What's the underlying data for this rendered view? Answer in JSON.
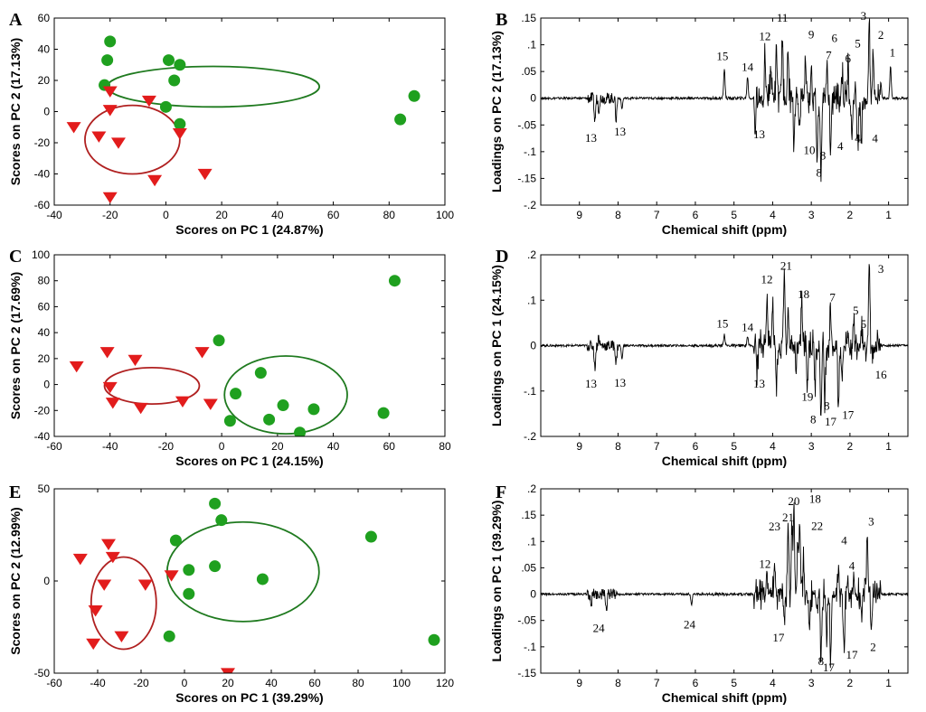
{
  "figure": {
    "marker_colors": {
      "group_circle": "#1fa01f",
      "group_triangle": "#e21c1c",
      "ellipse_green": "#1f7a1f",
      "ellipse_red": "#b02020"
    }
  },
  "chart_data": [
    {
      "panel": "A",
      "type": "scatter",
      "xlabel": "Scores on PC 1 (24.87%)",
      "ylabel": "Scores on PC 2 (17.13%)",
      "xlim": [
        -40,
        100
      ],
      "ylim": [
        -60,
        60
      ],
      "xticks": [
        -40,
        -20,
        0,
        20,
        40,
        60,
        80,
        100
      ],
      "yticks": [
        -60,
        -40,
        -20,
        0,
        20,
        40,
        60
      ],
      "series": [
        {
          "name": "circles",
          "marker": "circle",
          "points": [
            [
              -20,
              45
            ],
            [
              -21,
              33
            ],
            [
              -22,
              17
            ],
            [
              1,
              33
            ],
            [
              5,
              30
            ],
            [
              3,
              20
            ],
            [
              0,
              3
            ],
            [
              5,
              -8
            ],
            [
              84,
              -5
            ],
            [
              89,
              10
            ]
          ]
        },
        {
          "name": "triangles",
          "marker": "triangle",
          "points": [
            [
              -33,
              -10
            ],
            [
              -24,
              -16
            ],
            [
              -20,
              13
            ],
            [
              -20,
              1
            ],
            [
              -17,
              -20
            ],
            [
              -6,
              7
            ],
            [
              5,
              -14
            ],
            [
              -4,
              -44
            ],
            [
              14,
              -40
            ],
            [
              -20,
              -55
            ]
          ]
        }
      ],
      "ellipses": [
        {
          "color": "green",
          "center": [
            17,
            16
          ],
          "radii": [
            38,
            13
          ]
        },
        {
          "color": "red",
          "center": [
            -12,
            -18
          ],
          "radii": [
            17,
            22
          ]
        }
      ]
    },
    {
      "panel": "B",
      "type": "line",
      "xlabel": "Chemical shift (ppm)",
      "ylabel": "Loadings on PC 2 (17.13%)",
      "xlim": [
        10,
        0.5
      ],
      "ylim": [
        -0.2,
        0.15
      ],
      "xticks": [
        9,
        8,
        7,
        6,
        5,
        4,
        3,
        2,
        1
      ],
      "yticks": [
        -0.2,
        -0.15,
        -0.1,
        -0.05,
        0,
        0.05,
        0.1,
        0.15
      ],
      "peaks": [
        [
          8.6,
          -0.045
        ],
        [
          8.5,
          -0.02
        ],
        [
          8.05,
          -0.04
        ],
        [
          7.9,
          -0.02
        ],
        [
          5.25,
          0.055
        ],
        [
          4.65,
          0.04
        ],
        [
          4.45,
          -0.06
        ],
        [
          4.2,
          0.09
        ],
        [
          4.05,
          0.06
        ],
        [
          3.9,
          0.09
        ],
        [
          3.75,
          0.12
        ],
        [
          3.6,
          0.08
        ],
        [
          3.45,
          -0.09
        ],
        [
          3.3,
          -0.06
        ],
        [
          3.15,
          0.07
        ],
        [
          3.0,
          0.065
        ],
        [
          2.85,
          -0.12
        ],
        [
          2.75,
          -0.15
        ],
        [
          2.6,
          0.05
        ],
        [
          2.5,
          -0.1
        ],
        [
          2.2,
          0.05
        ],
        [
          2.05,
          0.06
        ],
        [
          1.95,
          -0.07
        ],
        [
          1.8,
          -0.09
        ],
        [
          1.7,
          -0.08
        ],
        [
          1.5,
          0.14
        ],
        [
          1.4,
          0.1
        ],
        [
          1.2,
          0.03
        ],
        [
          0.95,
          0.06
        ]
      ],
      "annotations": [
        {
          "text": "13",
          "x": 8.7,
          "y": -0.075
        },
        {
          "text": "13",
          "x": 7.95,
          "y": -0.063
        },
        {
          "text": "15",
          "x": 5.3,
          "y": 0.078
        },
        {
          "text": "14",
          "x": 4.65,
          "y": 0.058
        },
        {
          "text": "12",
          "x": 4.2,
          "y": 0.115
        },
        {
          "text": "11",
          "x": 3.75,
          "y": 0.15
        },
        {
          "text": "13",
          "x": 4.35,
          "y": -0.068
        },
        {
          "text": "9",
          "x": 3.0,
          "y": 0.119
        },
        {
          "text": "10",
          "x": 3.05,
          "y": -0.098
        },
        {
          "text": "8",
          "x": 2.7,
          "y": -0.108
        },
        {
          "text": "8",
          "x": 2.8,
          "y": -0.14
        },
        {
          "text": "7",
          "x": 2.55,
          "y": 0.08
        },
        {
          "text": "6",
          "x": 2.4,
          "y": 0.112
        },
        {
          "text": "6",
          "x": 2.05,
          "y": 0.074
        },
        {
          "text": "5",
          "x": 1.8,
          "y": 0.102
        },
        {
          "text": "4",
          "x": 2.25,
          "y": -0.09
        },
        {
          "text": "4",
          "x": 1.8,
          "y": -0.076
        },
        {
          "text": "4",
          "x": 1.35,
          "y": -0.076
        },
        {
          "text": "3",
          "x": 1.65,
          "y": 0.153
        },
        {
          "text": "2",
          "x": 1.2,
          "y": 0.118
        },
        {
          "text": "1",
          "x": 0.9,
          "y": 0.085
        }
      ]
    },
    {
      "panel": "C",
      "type": "scatter",
      "xlabel": "Scores on PC 1 (24.15%)",
      "ylabel": "Scores on PC 2 (17.69%)",
      "xlim": [
        -60,
        80
      ],
      "ylim": [
        -40,
        100
      ],
      "xticks": [
        -60,
        -40,
        -20,
        0,
        20,
        40,
        60,
        80
      ],
      "yticks": [
        -40,
        -20,
        0,
        20,
        40,
        60,
        80,
        100
      ],
      "series": [
        {
          "name": "circles",
          "marker": "circle",
          "points": [
            [
              62,
              80
            ],
            [
              -1,
              34
            ],
            [
              14,
              9
            ],
            [
              5,
              -7
            ],
            [
              3,
              -28
            ],
            [
              17,
              -27
            ],
            [
              22,
              -16
            ],
            [
              33,
              -19
            ],
            [
              28,
              -37
            ],
            [
              58,
              -22
            ]
          ]
        },
        {
          "name": "triangles",
          "marker": "triangle",
          "points": [
            [
              -52,
              14
            ],
            [
              -41,
              25
            ],
            [
              -31,
              19
            ],
            [
              -40,
              -2
            ],
            [
              -39,
              -14
            ],
            [
              -29,
              -18
            ],
            [
              -14,
              -13
            ],
            [
              -7,
              25
            ],
            [
              -4,
              -15
            ]
          ]
        }
      ],
      "ellipses": [
        {
          "color": "green",
          "center": [
            23,
            -8
          ],
          "radii": [
            22,
            30
          ]
        },
        {
          "color": "red",
          "center": [
            -25,
            -1
          ],
          "radii": [
            17,
            14
          ]
        }
      ]
    },
    {
      "panel": "D",
      "type": "line",
      "xlabel": "Chemical shift (ppm)",
      "ylabel": "Loadings on PC 1 (24.15%)",
      "xlim": [
        10,
        0.5
      ],
      "ylim": [
        -0.2,
        0.2
      ],
      "xticks": [
        9,
        8,
        7,
        6,
        5,
        4,
        3,
        2,
        1
      ],
      "yticks": [
        -0.2,
        -0.1,
        0,
        0.1,
        0.2
      ],
      "peaks": [
        [
          8.6,
          -0.05
        ],
        [
          8.5,
          0.02
        ],
        [
          8.05,
          -0.04
        ],
        [
          7.9,
          -0.03
        ],
        [
          5.25,
          0.025
        ],
        [
          4.65,
          0.02
        ],
        [
          4.4,
          -0.06
        ],
        [
          4.15,
          0.11
        ],
        [
          4.0,
          0.09
        ],
        [
          3.9,
          -0.08
        ],
        [
          3.7,
          0.17
        ],
        [
          3.6,
          0.08
        ],
        [
          3.4,
          -0.06
        ],
        [
          3.25,
          0.1
        ],
        [
          3.1,
          -0.08
        ],
        [
          2.9,
          -0.09
        ],
        [
          2.75,
          -0.16
        ],
        [
          2.65,
          -0.12
        ],
        [
          2.5,
          0.08
        ],
        [
          2.3,
          -0.14
        ],
        [
          2.2,
          -0.07
        ],
        [
          2.05,
          0.03
        ],
        [
          1.9,
          0.04
        ],
        [
          1.7,
          0.05
        ],
        [
          1.5,
          0.18
        ],
        [
          1.4,
          -0.03
        ]
      ],
      "annotations": [
        {
          "text": "13",
          "x": 8.7,
          "y": -0.085
        },
        {
          "text": "13",
          "x": 7.95,
          "y": -0.083
        },
        {
          "text": "15",
          "x": 5.3,
          "y": 0.048
        },
        {
          "text": "14",
          "x": 4.65,
          "y": 0.04
        },
        {
          "text": "12",
          "x": 4.15,
          "y": 0.145
        },
        {
          "text": "21",
          "x": 3.65,
          "y": 0.175
        },
        {
          "text": "13",
          "x": 4.35,
          "y": -0.085
        },
        {
          "text": "18",
          "x": 3.2,
          "y": 0.112
        },
        {
          "text": "19",
          "x": 3.1,
          "y": -0.113
        },
        {
          "text": "8",
          "x": 2.6,
          "y": -0.133
        },
        {
          "text": "8",
          "x": 2.95,
          "y": -0.163
        },
        {
          "text": "17",
          "x": 2.5,
          "y": -0.168
        },
        {
          "text": "17",
          "x": 2.05,
          "y": -0.153
        },
        {
          "text": "7",
          "x": 2.45,
          "y": 0.105
        },
        {
          "text": "5",
          "x": 1.85,
          "y": 0.077
        },
        {
          "text": "5",
          "x": 1.65,
          "y": 0.047
        },
        {
          "text": "3",
          "x": 1.2,
          "y": 0.168
        },
        {
          "text": "16",
          "x": 1.2,
          "y": -0.065
        }
      ]
    },
    {
      "panel": "E",
      "type": "scatter",
      "xlabel": "Scores on PC 1 (39.29%)",
      "ylabel": "Scores on PC 2 (12.99%)",
      "xlim": [
        -60,
        120
      ],
      "ylim": [
        -50,
        50
      ],
      "xticks": [
        -60,
        -40,
        -20,
        0,
        20,
        40,
        60,
        80,
        100,
        120
      ],
      "yticks": [
        -50,
        0,
        50
      ],
      "series": [
        {
          "name": "circles",
          "marker": "circle",
          "points": [
            [
              14,
              42
            ],
            [
              17,
              33
            ],
            [
              -4,
              22
            ],
            [
              14,
              8
            ],
            [
              2,
              6
            ],
            [
              36,
              1
            ],
            [
              2,
              -7
            ],
            [
              -7,
              -30
            ],
            [
              86,
              24
            ],
            [
              115,
              -32
            ]
          ]
        },
        {
          "name": "triangles",
          "marker": "triangle",
          "points": [
            [
              -48,
              12
            ],
            [
              -35,
              20
            ],
            [
              -33,
              13
            ],
            [
              -37,
              -2
            ],
            [
              -41,
              -16
            ],
            [
              -29,
              -30
            ],
            [
              -42,
              -34
            ],
            [
              -18,
              -2
            ],
            [
              -6,
              3
            ],
            [
              20,
              -50
            ]
          ]
        }
      ],
      "ellipses": [
        {
          "color": "green",
          "center": [
            27,
            5
          ],
          "radii": [
            35,
            27
          ]
        },
        {
          "color": "red",
          "center": [
            -28,
            -12
          ],
          "radii": [
            15,
            25
          ]
        }
      ]
    },
    {
      "panel": "F",
      "type": "line",
      "xlabel": "Chemical shift (ppm)",
      "ylabel": "Loadings on PC 1 (39.29%)",
      "xlim": [
        10,
        0.5
      ],
      "ylim": [
        -0.15,
        0.2
      ],
      "xticks": [
        9,
        8,
        7,
        6,
        5,
        4,
        3,
        2,
        1
      ],
      "yticks": [
        -0.15,
        -0.1,
        -0.05,
        0,
        0.05,
        0.1,
        0.15,
        0.2
      ],
      "peaks": [
        [
          8.7,
          -0.025
        ],
        [
          8.3,
          -0.03
        ],
        [
          6.1,
          -0.02
        ],
        [
          4.15,
          0.04
        ],
        [
          3.95,
          0.07
        ],
        [
          3.7,
          -0.05
        ],
        [
          3.6,
          0.12
        ],
        [
          3.5,
          0.14
        ],
        [
          3.45,
          0.15
        ],
        [
          3.35,
          0.1
        ],
        [
          3.3,
          0.14
        ],
        [
          3.2,
          0.06
        ],
        [
          3.05,
          -0.06
        ],
        [
          2.85,
          -0.05
        ],
        [
          2.75,
          -0.12
        ],
        [
          2.6,
          -0.08
        ],
        [
          2.5,
          -0.14
        ],
        [
          2.3,
          0.07
        ],
        [
          2.15,
          -0.12
        ],
        [
          2.05,
          0.03
        ],
        [
          1.9,
          0.02
        ],
        [
          1.7,
          -0.04
        ],
        [
          1.55,
          0.12
        ],
        [
          1.45,
          -0.06
        ]
      ],
      "annotations": [
        {
          "text": "24",
          "x": 8.5,
          "y": -0.065
        },
        {
          "text": "24",
          "x": 6.15,
          "y": -0.058
        },
        {
          "text": "12",
          "x": 4.2,
          "y": 0.057
        },
        {
          "text": "23",
          "x": 3.95,
          "y": 0.128
        },
        {
          "text": "21",
          "x": 3.6,
          "y": 0.145
        },
        {
          "text": "20",
          "x": 3.45,
          "y": 0.176
        },
        {
          "text": "18",
          "x": 2.9,
          "y": 0.18
        },
        {
          "text": "22",
          "x": 2.85,
          "y": 0.129
        },
        {
          "text": "17",
          "x": 3.85,
          "y": -0.083
        },
        {
          "text": "8",
          "x": 2.75,
          "y": -0.128
        },
        {
          "text": "17",
          "x": 2.55,
          "y": -0.14
        },
        {
          "text": "17",
          "x": 1.95,
          "y": -0.116
        },
        {
          "text": "4",
          "x": 2.15,
          "y": 0.101
        },
        {
          "text": "4",
          "x": 1.95,
          "y": 0.053
        },
        {
          "text": "3",
          "x": 1.45,
          "y": 0.137
        },
        {
          "text": "2",
          "x": 1.4,
          "y": -0.101
        }
      ]
    }
  ]
}
